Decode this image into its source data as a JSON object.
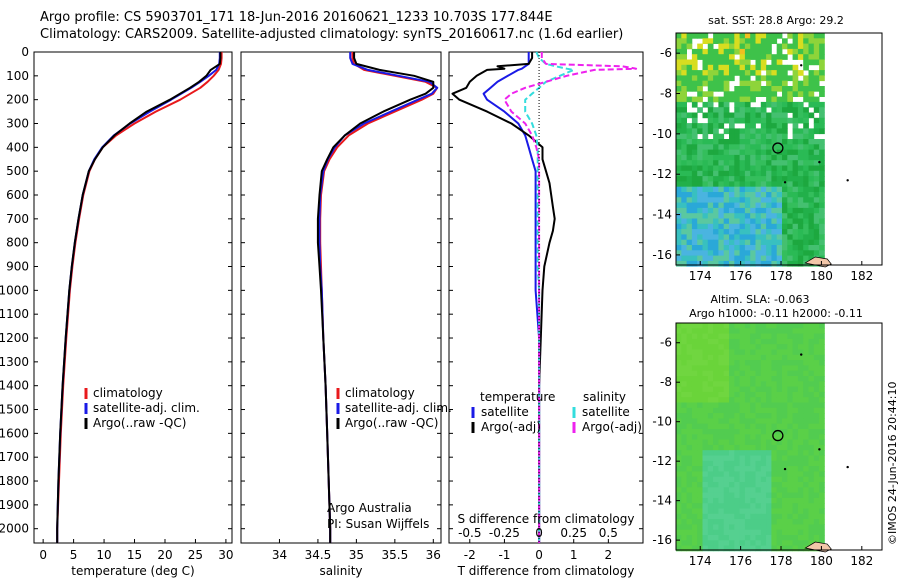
{
  "header": {
    "title_line1": "Argo profile: CS 5903701_171  18-Jun-2016 20160621_1233 10.703S 177.844E",
    "title_line2": "Climatology: CARS2009. Satellite-adjusted climatology: synTS_20160617.nc (1.6d earlier)"
  },
  "colors": {
    "climatology": "#e8191c",
    "satellite": "#1a1ae6",
    "argo": "#000000",
    "sat_salinity": "#33dddd",
    "argo_salinity": "#ee22ee"
  },
  "depth_axis": {
    "ticks": [
      0,
      100,
      200,
      300,
      400,
      500,
      600,
      700,
      800,
      900,
      1000,
      1100,
      1200,
      1300,
      1400,
      1500,
      1600,
      1700,
      1800,
      1900,
      2000
    ],
    "ylim": [
      0,
      2060
    ]
  },
  "chart_data": [
    {
      "type": "line",
      "name": "temperature",
      "xlabel": "temperature (deg C)",
      "xlim": [
        -1.5,
        31
      ],
      "xticks": [
        0,
        5,
        10,
        15,
        20,
        25,
        30
      ],
      "legend": [
        "climatology",
        "satellite-adj. clim.",
        "Argo(..raw -QC)"
      ],
      "depth": [
        0,
        25,
        50,
        75,
        100,
        125,
        150,
        200,
        250,
        300,
        350,
        400,
        450,
        500,
        600,
        700,
        800,
        900,
        1000,
        1200,
        1400,
        1600,
        1800,
        2000,
        2060
      ],
      "series": [
        {
          "name": "climatology",
          "values": [
            29.3,
            29.3,
            29.2,
            28.8,
            28.0,
            27.0,
            25.8,
            22.5,
            18.5,
            15.0,
            12.0,
            9.8,
            8.5,
            7.6,
            6.6,
            5.9,
            5.3,
            4.8,
            4.4,
            3.8,
            3.3,
            2.9,
            2.6,
            2.3,
            2.3
          ]
        },
        {
          "name": "satellite-adj. clim.",
          "values": [
            29.0,
            29.0,
            28.9,
            28.4,
            27.2,
            25.8,
            24.3,
            21.0,
            17.5,
            14.3,
            11.6,
            9.7,
            8.4,
            7.5,
            6.5,
            5.8,
            5.2,
            4.7,
            4.3,
            3.7,
            3.2,
            2.8,
            2.5,
            2.3,
            2.3
          ]
        },
        {
          "name": "Argo(..raw -QC)",
          "values": [
            29.1,
            29.1,
            29.0,
            27.5,
            26.8,
            25.6,
            24.1,
            20.8,
            17.0,
            14.2,
            11.7,
            9.8,
            8.5,
            7.5,
            6.5,
            5.8,
            5.2,
            4.7,
            4.3,
            3.7,
            3.2,
            2.8,
            2.5,
            2.3,
            2.3
          ]
        }
      ]
    },
    {
      "type": "line",
      "name": "salinity",
      "xlabel": "salinity",
      "xlim": [
        33.5,
        36.1
      ],
      "xticks": [
        34,
        34.5,
        35,
        35.5,
        36
      ],
      "xtick_labels": [
        "34",
        "34.5",
        "35",
        "35.5",
        "36"
      ],
      "legend": [
        "climatology",
        "satellite-adj. clim.",
        "Argo(..raw -QC)"
      ],
      "annotation": [
        "Argo Australia",
        "PI: Susan Wijffels"
      ],
      "depth": [
        0,
        25,
        50,
        75,
        100,
        125,
        150,
        175,
        200,
        250,
        300,
        350,
        400,
        450,
        500,
        600,
        700,
        800,
        900,
        1000,
        1200,
        1400,
        1600,
        1800,
        2000,
        2060
      ],
      "series": [
        {
          "name": "climatology",
          "values": [
            34.95,
            34.95,
            34.97,
            35.1,
            35.5,
            35.9,
            36.05,
            36.0,
            35.85,
            35.5,
            35.15,
            34.9,
            34.75,
            34.65,
            34.58,
            34.54,
            34.53,
            34.53,
            34.54,
            34.55,
            34.57,
            34.6,
            34.62,
            34.64,
            34.66,
            34.66
          ]
        },
        {
          "name": "satellite-adj. clim.",
          "values": [
            34.92,
            34.92,
            34.95,
            35.15,
            35.55,
            35.95,
            36.05,
            35.98,
            35.8,
            35.45,
            35.1,
            34.85,
            34.72,
            34.63,
            34.57,
            34.53,
            34.52,
            34.52,
            34.53,
            34.55,
            34.57,
            34.6,
            34.62,
            34.64,
            34.66,
            34.66
          ]
        },
        {
          "name": "Argo(..raw -QC)",
          "values": [
            34.97,
            34.97,
            35.0,
            35.3,
            35.75,
            36.0,
            36.0,
            35.9,
            35.7,
            35.35,
            35.05,
            34.85,
            34.7,
            34.62,
            34.55,
            34.52,
            34.5,
            34.5,
            34.52,
            34.54,
            34.57,
            34.6,
            34.62,
            34.64,
            34.66,
            34.66
          ]
        }
      ]
    },
    {
      "type": "line",
      "name": "difference",
      "xlabel_bottom": "T difference from climatology",
      "xlabel_top": "S difference from climatology",
      "xlim": [
        -2.6,
        3.0
      ],
      "xticks_bottom": [
        -2,
        -1,
        0,
        1,
        2
      ],
      "xticks_top": [
        -0.5,
        -0.25,
        0,
        0.25,
        0.5
      ],
      "xtick_labels_top": [
        "-0.5",
        "-0.25",
        "0",
        "0.25",
        "0.5"
      ],
      "legend_titles": [
        "temperature",
        "salinity"
      ],
      "legend": [
        "satellite",
        "Argo(-adj)",
        "satellite",
        "Argo(-adj)"
      ],
      "depth": [
        0,
        25,
        50,
        60,
        70,
        75,
        100,
        125,
        150,
        175,
        200,
        250,
        300,
        350,
        400,
        450,
        500,
        550,
        600,
        650,
        700,
        750,
        800,
        900,
        1000,
        1200,
        1400,
        1600,
        1800,
        2000,
        2060
      ],
      "series": [
        {
          "name": "temperature satellite",
          "values": [
            -0.3,
            -0.3,
            -0.3,
            -0.4,
            -0.5,
            -0.6,
            -0.9,
            -1.2,
            -1.4,
            -1.6,
            -1.5,
            -1.0,
            -0.6,
            -0.4,
            -0.3,
            -0.2,
            -0.1,
            -0.1,
            -0.1,
            -0.1,
            -0.1,
            -0.1,
            -0.1,
            -0.1,
            -0.1,
            0.0,
            0.0,
            0.0,
            0.0,
            0.0,
            0.0
          ]
        },
        {
          "name": "temperature Argo(-adj)",
          "values": [
            -0.2,
            -0.2,
            -0.3,
            -1.2,
            -1.0,
            -1.5,
            -1.8,
            -2.0,
            -2.1,
            -2.5,
            -2.3,
            -1.5,
            -0.8,
            -0.3,
            0.1,
            0.1,
            0.2,
            0.3,
            0.35,
            0.4,
            0.45,
            0.4,
            0.3,
            0.15,
            0.1,
            0.05,
            0.0,
            0.0,
            0.0,
            0.0,
            0.0
          ]
        },
        {
          "name": "salinity satellite",
          "values": [
            -0.02,
            0.0,
            0.05,
            0.12,
            0.2,
            0.25,
            0.15,
            0.05,
            0.0,
            -0.05,
            -0.1,
            -0.1,
            -0.05,
            -0.02,
            -0.01,
            -0.01,
            -0.01,
            -0.01,
            -0.01,
            -0.01,
            -0.01,
            -0.01,
            -0.01,
            -0.01,
            0.0,
            0.0,
            0.0,
            0.0,
            0.0,
            0.0,
            0.0
          ]
        },
        {
          "name": "salinity Argo(-adj)",
          "values": [
            0.02,
            0.02,
            0.05,
            0.6,
            0.7,
            0.4,
            0.2,
            0.05,
            -0.1,
            -0.2,
            -0.25,
            -0.2,
            -0.1,
            -0.05,
            -0.02,
            0.0,
            0.0,
            0.0,
            0.0,
            0.0,
            0.0,
            0.0,
            0.0,
            0.0,
            0.0,
            0.0,
            0.0,
            0.0,
            0.0,
            0.0,
            0.0
          ]
        }
      ]
    },
    {
      "type": "heatmap",
      "name": "sst-map",
      "title": "sat. SST: 28.8  Argo: 29.2",
      "xlim": [
        172.8,
        183
      ],
      "ylim": [
        -16.5,
        -5
      ],
      "xticks": [
        174,
        176,
        178,
        180,
        182
      ],
      "yticks": [
        -6,
        -8,
        -10,
        -12,
        -14,
        -16
      ],
      "argo_position": [
        177.844,
        -10.703
      ]
    },
    {
      "type": "heatmap",
      "name": "sla-map",
      "title_line1": "Altim. SLA: -0.063",
      "title_line2": "Argo h1000: -0.11  h2000: -0.11",
      "xlim": [
        172.8,
        183
      ],
      "ylim": [
        -16.5,
        -5
      ],
      "xticks": [
        174,
        176,
        178,
        180,
        182
      ],
      "yticks": [
        -6,
        -8,
        -10,
        -12,
        -14,
        -16
      ],
      "argo_position": [
        177.844,
        -10.703
      ]
    }
  ],
  "footer": {
    "credit": "©IMOS 24-Jun-2016 20:44:10"
  }
}
